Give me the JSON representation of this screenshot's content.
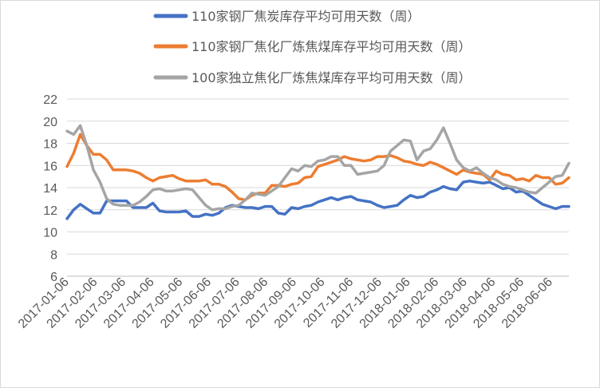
{
  "chart_data": {
    "type": "line",
    "title": "",
    "xlabel": "",
    "ylabel": "",
    "ylim": [
      6,
      22
    ],
    "yticks": [
      6,
      8,
      10,
      12,
      14,
      16,
      18,
      20,
      22
    ],
    "grid": true,
    "legend_position": "top",
    "x_tick_labels": [
      "2017-01-06",
      "2017-02-06",
      "2017-03-06",
      "2017-04-06",
      "2017-05-06",
      "2017-06-06",
      "2017-07-06",
      "2017-08-06",
      "2017-09-06",
      "2017-10-06",
      "2017-11-06",
      "2017-12-06",
      "2018-01-06",
      "2018-02-06",
      "2018-03-06",
      "2018-04-06",
      "2018-05-06",
      "2018-06-06"
    ],
    "series": [
      {
        "name": "110家钢厂焦炭库存平均可用天数（周）",
        "color": "#4472c4",
        "values": [
          11.2,
          12.0,
          12.5,
          12.1,
          11.7,
          11.7,
          12.8,
          12.8,
          12.8,
          12.8,
          12.2,
          12.2,
          12.2,
          12.6,
          11.9,
          11.8,
          11.8,
          11.8,
          11.9,
          11.4,
          11.4,
          11.6,
          11.5,
          11.7,
          12.2,
          12.4,
          12.3,
          12.2,
          12.2,
          12.1,
          12.3,
          12.3,
          11.7,
          11.6,
          12.2,
          12.1,
          12.3,
          12.4,
          12.7,
          12.9,
          13.1,
          12.9,
          13.1,
          13.2,
          12.9,
          12.8,
          12.7,
          12.4,
          12.2,
          12.3,
          12.4,
          12.9,
          13.3,
          13.1,
          13.2,
          13.6,
          13.8,
          14.1,
          13.9,
          13.8,
          14.5,
          14.6,
          14.5,
          14.4,
          14.5,
          14.2,
          13.9,
          14.0,
          13.6,
          13.7,
          13.3,
          12.9,
          12.5,
          12.3,
          12.1,
          12.3,
          12.3
        ]
      },
      {
        "name": "110家钢厂焦化厂炼焦煤库存平均可用天数（周）",
        "color": "#ed7d31",
        "values": [
          15.9,
          17.1,
          18.8,
          17.8,
          17.0,
          17.0,
          16.5,
          15.6,
          15.6,
          15.6,
          15.5,
          15.3,
          14.9,
          14.6,
          14.9,
          15.0,
          15.1,
          14.8,
          14.6,
          14.6,
          14.6,
          14.7,
          14.3,
          14.3,
          14.1,
          13.6,
          13.0,
          12.9,
          13.3,
          13.5,
          13.5,
          14.2,
          14.2,
          14.1,
          14.3,
          14.4,
          14.9,
          15.0,
          15.9,
          16.1,
          16.3,
          16.5,
          16.8,
          16.6,
          16.5,
          16.4,
          16.5,
          16.8,
          16.8,
          16.9,
          16.7,
          16.4,
          16.3,
          16.1,
          16.0,
          16.3,
          16.1,
          15.8,
          15.5,
          15.2,
          15.6,
          15.4,
          15.3,
          15.2,
          14.7,
          15.5,
          15.2,
          15.1,
          14.7,
          14.8,
          14.6,
          15.1,
          14.9,
          14.9,
          14.3,
          14.4,
          14.9
        ]
      },
      {
        "name": "100家独立焦化厂炼焦煤库存平均可用天数（周）",
        "color": "#a5a5a5",
        "values": [
          19.1,
          18.8,
          19.6,
          17.8,
          15.6,
          14.5,
          13.0,
          12.5,
          12.4,
          12.4,
          12.4,
          12.7,
          13.2,
          13.8,
          13.9,
          13.7,
          13.7,
          13.8,
          13.9,
          13.8,
          13.1,
          12.4,
          12.0,
          12.1,
          12.1,
          12.3,
          12.4,
          12.9,
          13.5,
          13.4,
          13.3,
          13.7,
          14.1,
          14.9,
          15.7,
          15.5,
          16.0,
          15.9,
          16.4,
          16.5,
          16.8,
          16.8,
          16.0,
          16.0,
          15.2,
          15.3,
          15.4,
          15.5,
          16.0,
          17.3,
          17.8,
          18.3,
          18.2,
          16.5,
          17.3,
          17.5,
          18.3,
          19.4,
          18.0,
          16.5,
          15.8,
          15.5,
          15.8,
          15.3,
          14.9,
          14.7,
          14.3,
          14.1,
          14.0,
          13.8,
          13.6,
          13.5,
          14.0,
          14.5,
          15.0,
          15.1,
          16.2
        ]
      }
    ]
  }
}
